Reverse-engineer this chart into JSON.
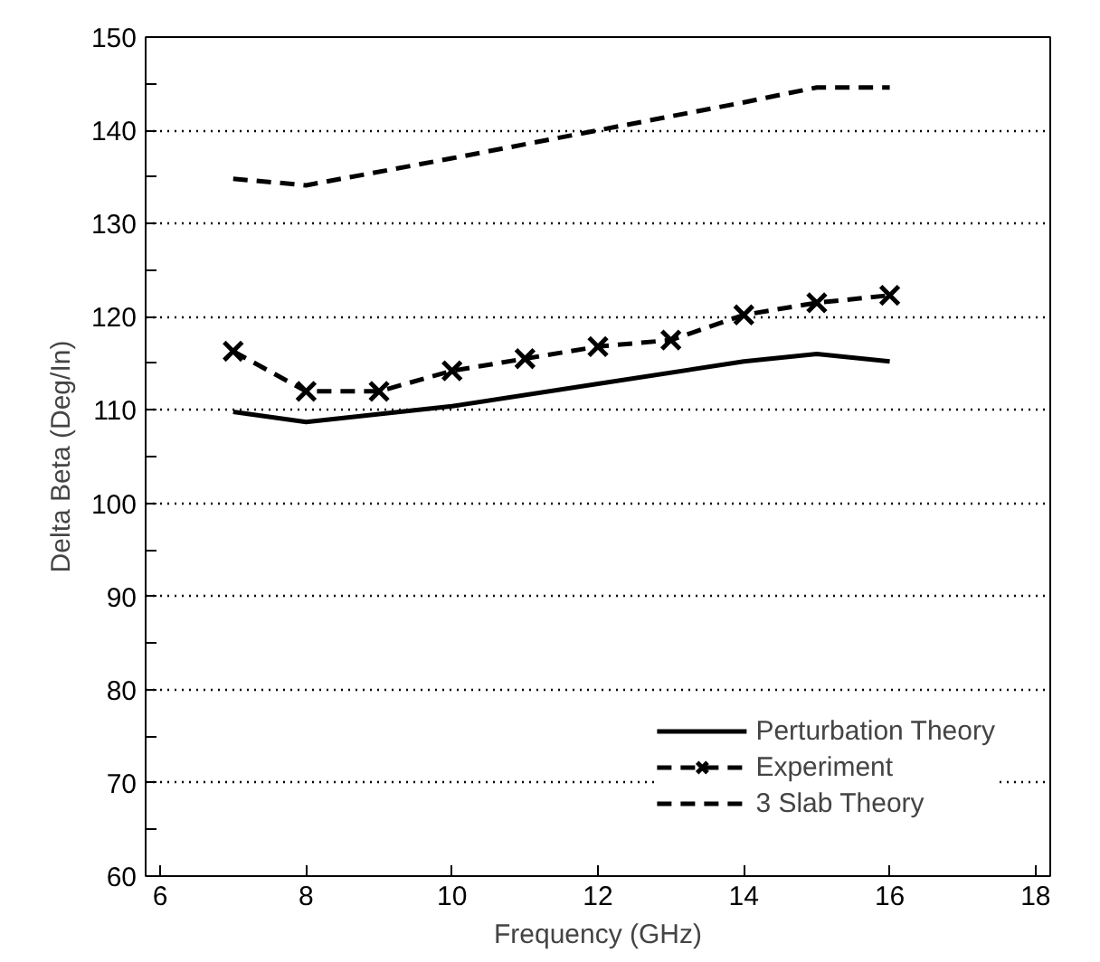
{
  "chart_data": {
    "type": "line",
    "xlabel": "Frequency (GHz)",
    "ylabel": "Delta Beta (Deg/In)",
    "xlim": [
      5.8,
      18.2
    ],
    "xticks": [
      6,
      8,
      10,
      12,
      14,
      16,
      18
    ],
    "ylim": [
      60,
      150
    ],
    "yticks": [
      60,
      {
        "value": 65,
        "label": null
      },
      70,
      {
        "value": 75,
        "label": null
      },
      80,
      {
        "value": 85,
        "label": null
      },
      90,
      {
        "value": 95,
        "label": null
      },
      100,
      {
        "value": 105,
        "label": null
      },
      110,
      {
        "value": 115,
        "label": null
      },
      120,
      {
        "value": 125,
        "label": null
      },
      130,
      {
        "value": 135,
        "label": null
      },
      140,
      {
        "value": 145,
        "label": null
      },
      150
    ],
    "grid": "y",
    "legend": "bottom right",
    "series": [
      {
        "name": "Perturbation Theory",
        "color": "#000000",
        "line_style": "solid",
        "marker": "none",
        "x": [
          7,
          8,
          10,
          12,
          14,
          15,
          16
        ],
        "values": [
          109.8,
          108.7,
          110.4,
          112.8,
          115.2,
          116,
          115.2
        ]
      },
      {
        "name": "Experiment",
        "color": "#000000",
        "line_style": "dashed",
        "marker": "cross",
        "x": [
          7,
          8,
          9,
          10,
          11,
          12,
          13,
          14,
          15,
          16
        ],
        "values": [
          116.3,
          112,
          112,
          114.2,
          115.5,
          116.8,
          117.5,
          120.2,
          121.5,
          122.3
        ]
      },
      {
        "name": "3 Slab Theory",
        "color": "#000000",
        "line_style": "dashed",
        "marker": "none",
        "x": [
          7,
          8,
          10,
          12,
          14,
          15,
          16
        ],
        "values": [
          134.8,
          134.1,
          137,
          140,
          143,
          144.6,
          144.6
        ]
      }
    ]
  }
}
